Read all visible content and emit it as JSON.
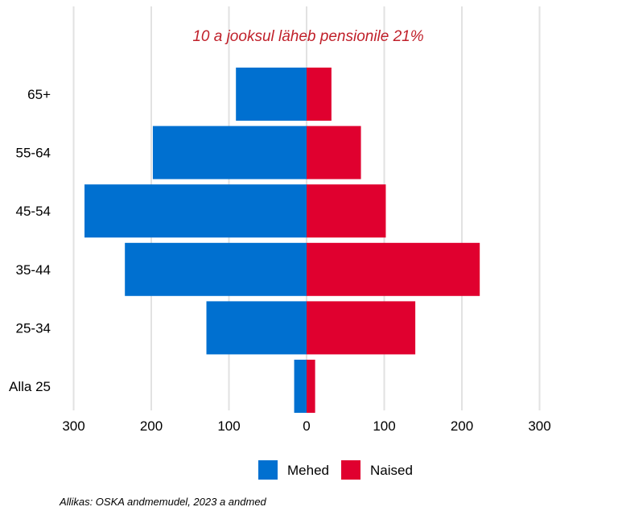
{
  "chart_data": {
    "type": "bar",
    "orientation": "horizontal",
    "layout": "diverging-population-pyramid",
    "categories": [
      "Alla 25",
      "25-34",
      "35-44",
      "45-54",
      "55-64",
      "65+"
    ],
    "series": [
      {
        "name": "Mehed",
        "color": "#0070d0",
        "side": "left",
        "values": [
          16,
          129,
          234,
          286,
          198,
          91
        ]
      },
      {
        "name": "Naised",
        "color": "#e0002f",
        "side": "right",
        "values": [
          11,
          140,
          223,
          102,
          70,
          32
        ]
      }
    ],
    "xlim": [
      -300,
      300
    ],
    "xticks": [
      -300,
      -200,
      -100,
      0,
      100,
      200,
      300
    ],
    "xtick_labels": [
      "300",
      "200",
      "100",
      "0",
      "100",
      "200",
      "300"
    ],
    "grid": "vertical",
    "legend_position": "bottom",
    "annotation": {
      "text": "10 a jooksul läheb pensionile 21%",
      "color": "#c0202a"
    },
    "source": "Allikas: OSKA andmemudel, 2023 a andmed"
  }
}
